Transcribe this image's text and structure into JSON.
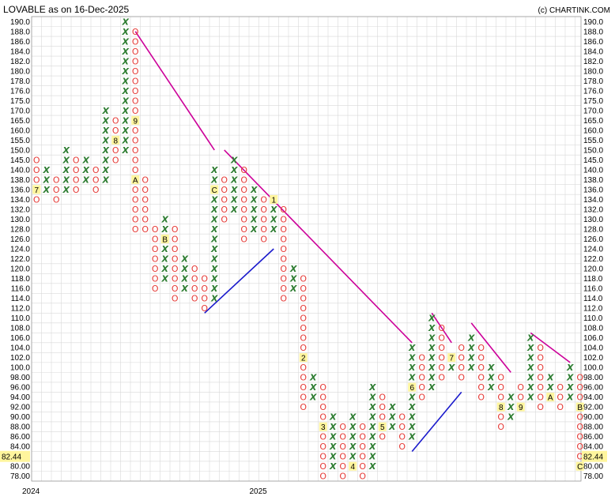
{
  "chart_data": {
    "type": "point-and-figure",
    "title": "LOVABLE as on 16-Dec-2025",
    "credit": "(c) CHARTINK.COM",
    "last_price": "82.44",
    "box_size": 2,
    "ylim": [
      78,
      190
    ],
    "y_ticks": [
      "190.0",
      "188.0",
      "186.0",
      "184.0",
      "182.0",
      "180.0",
      "178.0",
      "176.0",
      "175.0",
      "170.0",
      "165.0",
      "160.0",
      "155.0",
      "150.0",
      "145.0",
      "140.0",
      "138.0",
      "136.0",
      "134.0",
      "132.0",
      "130.0",
      "128.0",
      "126.0",
      "124.0",
      "122.0",
      "120.0",
      "118.0",
      "116.0",
      "114.0",
      "112.0",
      "110.0",
      "108.0",
      "106.0",
      "104.0",
      "102.0",
      "100.0",
      "98.00",
      "96.00",
      "94.00",
      "92.00",
      "90.00",
      "88.00",
      "86.00",
      "84.00",
      "82.00",
      "80.00",
      "78.00"
    ],
    "x_labels": [
      {
        "col": 0,
        "text": "2024"
      },
      {
        "col": 23,
        "text": "2025"
      }
    ],
    "colors": {
      "x": "#2e7d32",
      "o": "#e53935",
      "downtrend": "#cc0099",
      "uptrend": "#1a1acc",
      "month_bg": "#fff59d",
      "grid": "#d9d9d9"
    },
    "columns": [
      {
        "type": "O",
        "from": 145,
        "to": 134,
        "months": {
          "136": "7"
        }
      },
      {
        "type": "X",
        "from": 136,
        "to": 140
      },
      {
        "type": "O",
        "from": 138,
        "to": 134
      },
      {
        "type": "X",
        "from": 136,
        "to": 150
      },
      {
        "type": "O",
        "from": 145,
        "to": 136
      },
      {
        "type": "X",
        "from": 138,
        "to": 145
      },
      {
        "type": "O",
        "from": 140,
        "to": 136
      },
      {
        "type": "X",
        "from": 138,
        "to": 170
      },
      {
        "type": "O",
        "from": 165,
        "to": 145,
        "months": {
          "155": "8"
        }
      },
      {
        "type": "X",
        "from": 150,
        "to": 190
      },
      {
        "type": "O",
        "from": 188,
        "to": 128,
        "months": {
          "165": "9",
          "138": "A"
        }
      },
      {
        "type": "O",
        "from": 138,
        "to": 128
      },
      {
        "type": "O",
        "from": 128,
        "to": 116
      },
      {
        "type": "X",
        "from": 118,
        "to": 130,
        "months": {
          "126": "B"
        }
      },
      {
        "type": "O",
        "from": 128,
        "to": 114
      },
      {
        "type": "X",
        "from": 116,
        "to": 122
      },
      {
        "type": "O",
        "from": 120,
        "to": 114
      },
      {
        "type": "O",
        "from": 118,
        "to": 112
      },
      {
        "type": "X",
        "from": 114,
        "to": 140,
        "months": {
          "136": "C"
        }
      },
      {
        "type": "O",
        "from": 138,
        "to": 130
      },
      {
        "type": "X",
        "from": 132,
        "to": 145
      },
      {
        "type": "O",
        "from": 140,
        "to": 126
      },
      {
        "type": "X",
        "from": 128,
        "to": 136
      },
      {
        "type": "O",
        "from": 134,
        "to": 126
      },
      {
        "type": "X",
        "from": 128,
        "to": 134,
        "months": {
          "134": "1"
        }
      },
      {
        "type": "O",
        "from": 132,
        "to": 114
      },
      {
        "type": "X",
        "from": 116,
        "to": 120
      },
      {
        "type": "O",
        "from": 118,
        "to": 92,
        "months": {
          "102": "2"
        }
      },
      {
        "type": "X",
        "from": 94,
        "to": 98
      },
      {
        "type": "O",
        "from": 96,
        "to": 78,
        "months": {
          "88": "3"
        }
      },
      {
        "type": "X",
        "from": 80,
        "to": 90
      },
      {
        "type": "O",
        "from": 88,
        "to": 78
      },
      {
        "type": "X",
        "from": 80,
        "to": 90,
        "months": {
          "80": "4"
        }
      },
      {
        "type": "O",
        "from": 88,
        "to": 78
      },
      {
        "type": "X",
        "from": 80,
        "to": 96
      },
      {
        "type": "O",
        "from": 94,
        "to": 86,
        "months": {
          "88": "5"
        }
      },
      {
        "type": "X",
        "from": 88,
        "to": 92
      },
      {
        "type": "O",
        "from": 90,
        "to": 84
      },
      {
        "type": "X",
        "from": 86,
        "to": 104,
        "months": {
          "96": "6"
        }
      },
      {
        "type": "O",
        "from": 102,
        "to": 94
      },
      {
        "type": "X",
        "from": 96,
        "to": 110
      },
      {
        "type": "O",
        "from": 108,
        "to": 98
      },
      {
        "type": "X",
        "from": 100,
        "to": 102,
        "months": {
          "102": "7"
        }
      },
      {
        "type": "O",
        "from": 104,
        "to": 98
      },
      {
        "type": "X",
        "from": 100,
        "to": 106
      },
      {
        "type": "O",
        "from": 104,
        "to": 94
      },
      {
        "type": "X",
        "from": 96,
        "to": 100
      },
      {
        "type": "O",
        "from": 98,
        "to": 88,
        "months": {
          "92": "8"
        }
      },
      {
        "type": "X",
        "from": 90,
        "to": 94
      },
      {
        "type": "O",
        "from": 96,
        "to": 92,
        "months": {
          "92": "9"
        }
      },
      {
        "type": "X",
        "from": 94,
        "to": 106
      },
      {
        "type": "O",
        "from": 104,
        "to": 92
      },
      {
        "type": "X",
        "from": 94,
        "to": 98,
        "months": {
          "94": "A"
        }
      },
      {
        "type": "O",
        "from": 96,
        "to": 92
      },
      {
        "type": "X",
        "from": 94,
        "to": 100
      },
      {
        "type": "O",
        "from": 98,
        "to": 80,
        "months": {
          "92": "B",
          "80": "C"
        }
      }
    ],
    "trendlines": [
      {
        "kind": "down",
        "from": {
          "col": 10,
          "y": 188
        },
        "to": {
          "col": 18,
          "y": 150
        }
      },
      {
        "kind": "down",
        "from": {
          "col": 19,
          "y": 150
        },
        "to": {
          "col": 38,
          "y": 105
        }
      },
      {
        "kind": "down",
        "from": {
          "col": 40,
          "y": 111
        },
        "to": {
          "col": 42,
          "y": 105
        }
      },
      {
        "kind": "down",
        "from": {
          "col": 44,
          "y": 109
        },
        "to": {
          "col": 48,
          "y": 99
        }
      },
      {
        "kind": "down",
        "from": {
          "col": 50,
          "y": 107
        },
        "to": {
          "col": 54,
          "y": 101
        }
      },
      {
        "kind": "up",
        "from": {
          "col": 17,
          "y": 111
        },
        "to": {
          "col": 24,
          "y": 124
        }
      },
      {
        "kind": "up",
        "from": {
          "col": 38,
          "y": 83
        },
        "to": {
          "col": 43,
          "y": 95
        }
      }
    ]
  }
}
